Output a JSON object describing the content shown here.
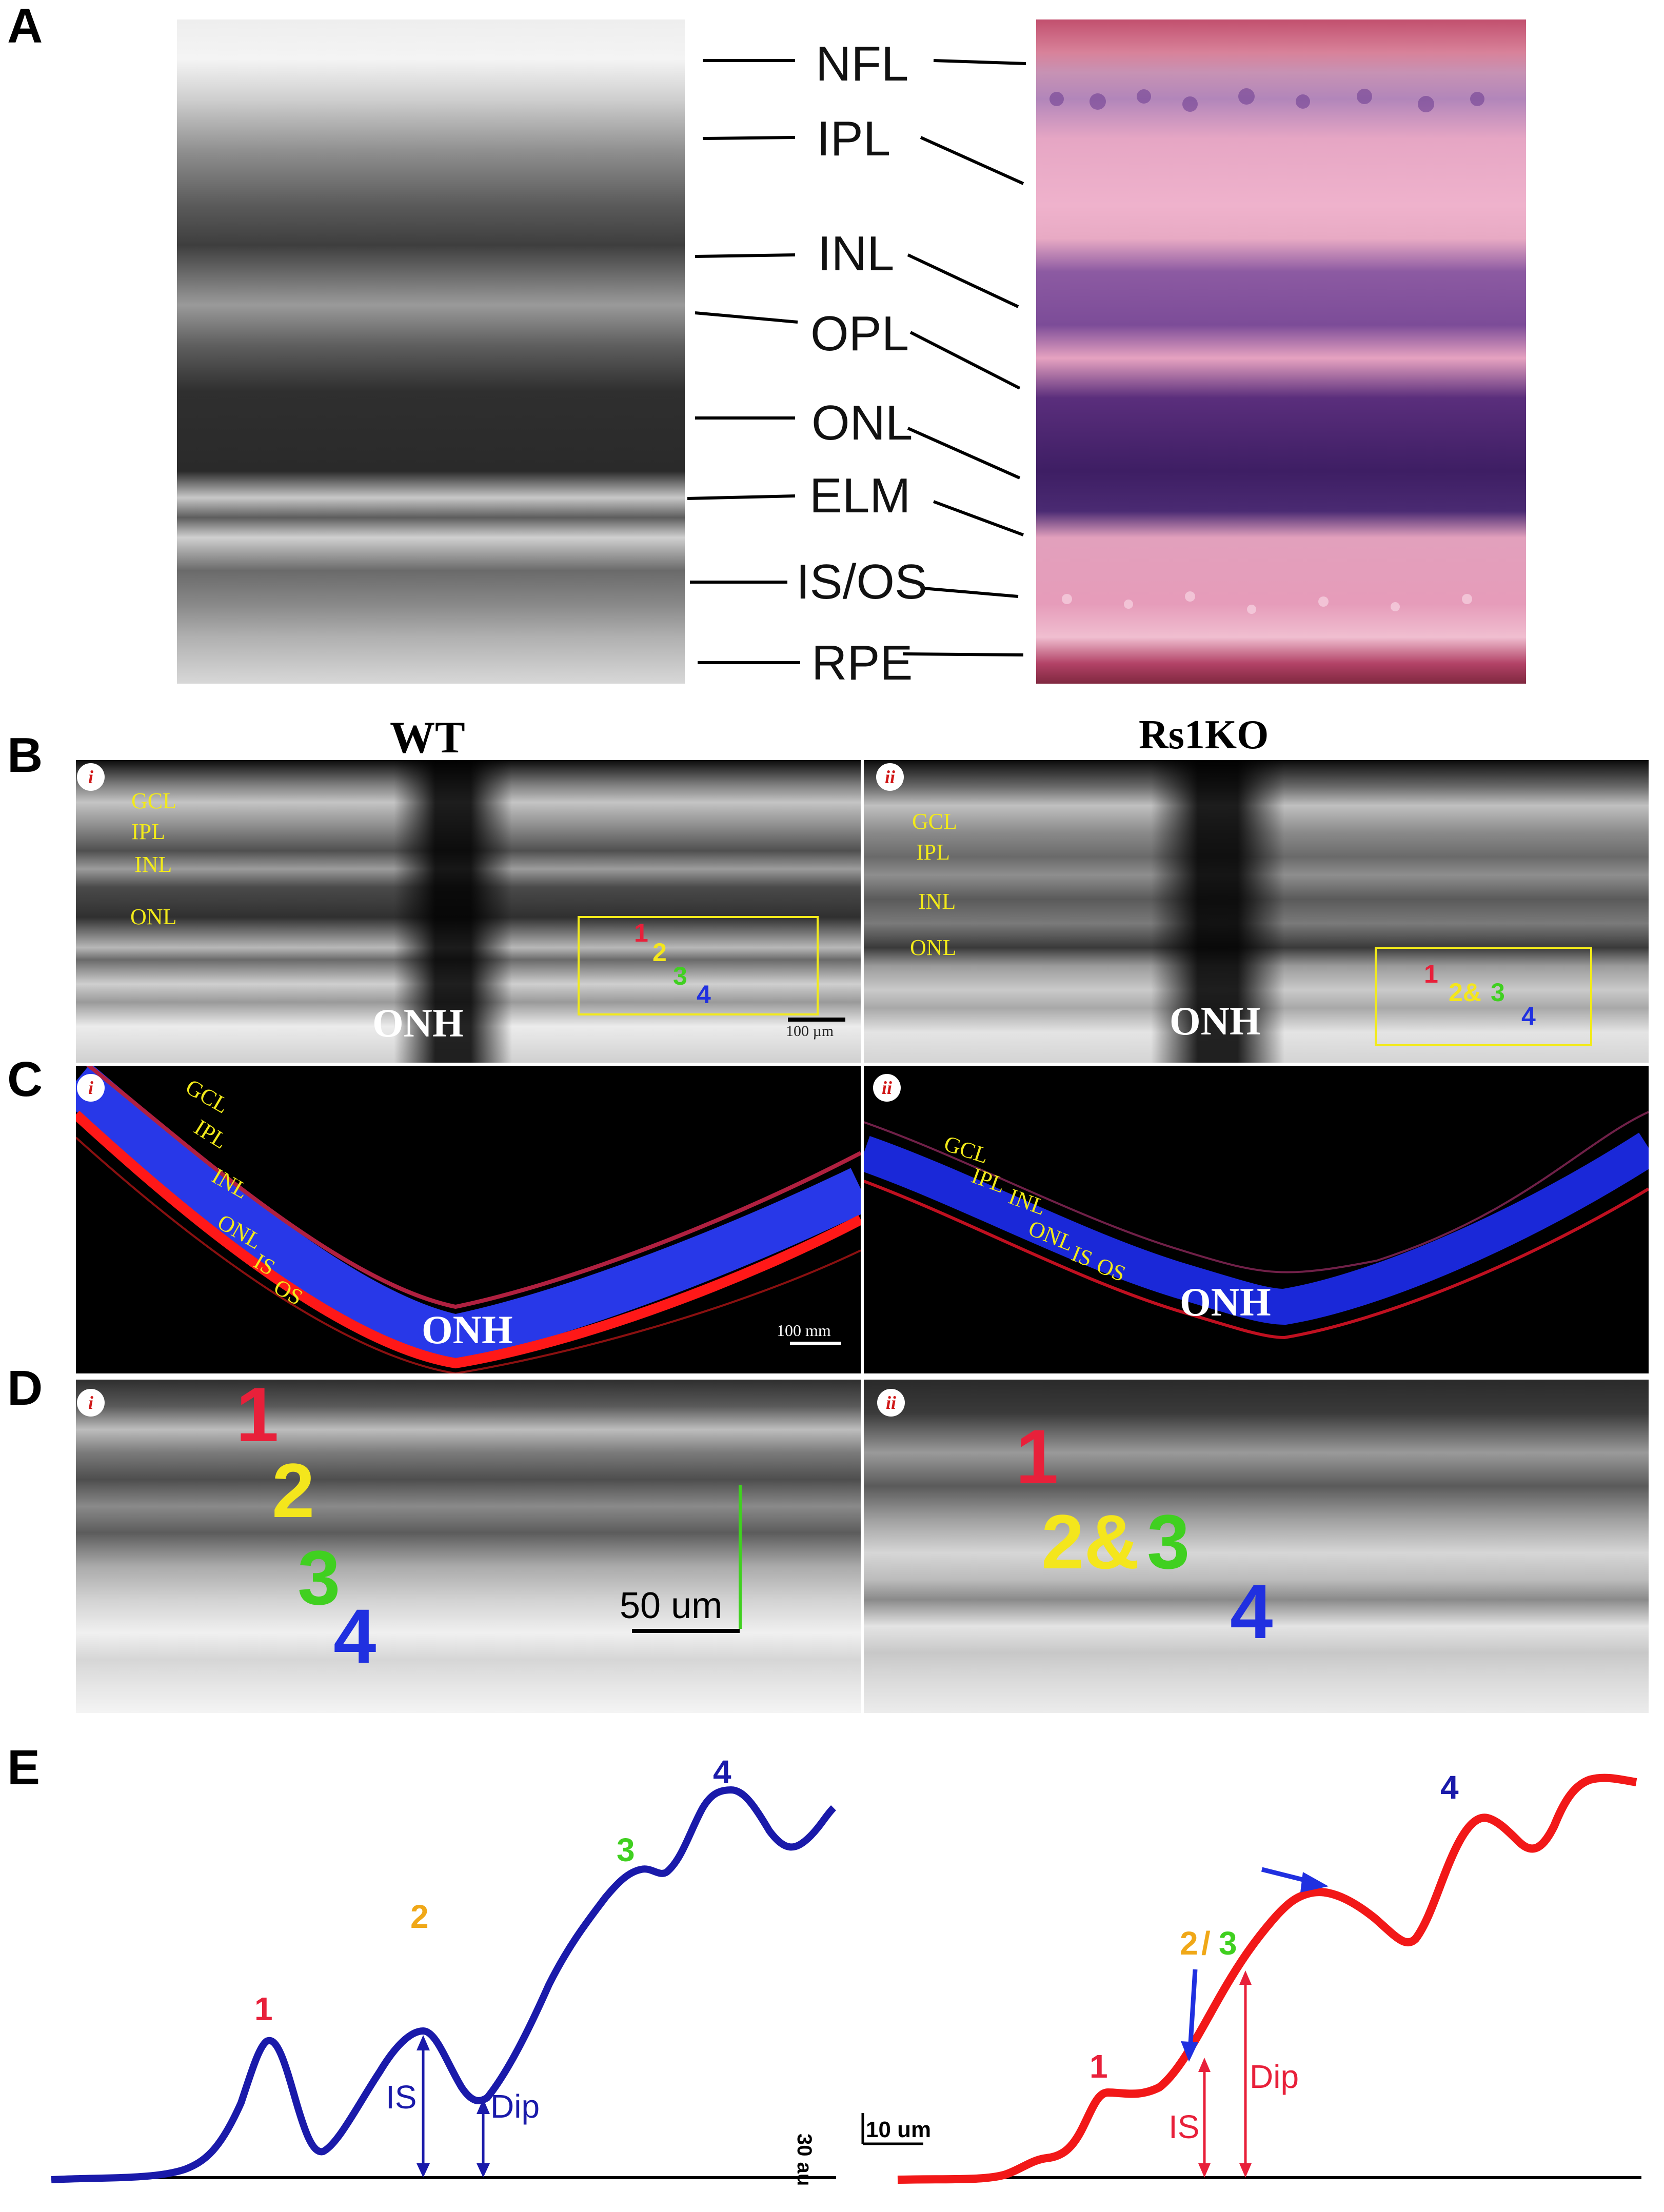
{
  "panel_letters": {
    "A": "A",
    "B": "B",
    "C": "C",
    "D": "D",
    "E": "E"
  },
  "panelA": {
    "layers": [
      "NFL",
      "IPL",
      "INL",
      "OPL",
      "ONL",
      "ELM",
      "IS/OS",
      "RPE"
    ]
  },
  "panelB": {
    "title_wt": "WT",
    "title_ko": "Rs1KO",
    "badge_i": "i",
    "badge_ii": "ii",
    "wt_layers": [
      "GCL",
      "IPL",
      "INL",
      "ONL"
    ],
    "ko_layers": [
      "GCL",
      "IPL",
      "INL",
      "ONL"
    ],
    "onh": "ONH",
    "wt_marks": [
      "1",
      "2",
      "3",
      "4"
    ],
    "ko_marks": {
      "m1": "1",
      "m23_a": "2&",
      "m23_b": "3",
      "m4": "4"
    },
    "scale": "100 µm"
  },
  "panelC": {
    "badge_i": "i",
    "badge_ii": "ii",
    "wt_layers": [
      "GCL",
      "IPL",
      "INL",
      "ONL",
      "IS",
      "OS"
    ],
    "ko_layers": [
      "GCL",
      "IPL",
      "INL",
      "ONL",
      "IS",
      "OS"
    ],
    "onh": "ONH",
    "scale": "100 mm"
  },
  "panelD": {
    "badge_i": "i",
    "badge_ii": "ii",
    "wt_marks": [
      "1",
      "2",
      "3",
      "4"
    ],
    "ko_marks": {
      "m1": "1",
      "m23_a": "2&",
      "m23_b": "3",
      "m4": "4"
    },
    "scale": "50 um"
  },
  "panelE": {
    "wt_peaks": [
      "1",
      "2",
      "3",
      "4"
    ],
    "wt_is": "IS",
    "wt_dip": "Dip",
    "ko_peaks": {
      "p1": "1",
      "p23_a": "2",
      "p23_sep": "/",
      "p23_b": "3",
      "p4": "4"
    },
    "ko_is": "IS",
    "ko_dip": "Dip",
    "scale_v": "30 au",
    "scale_h": "10 um"
  },
  "colors": {
    "red": "#e8203a",
    "yellow": "#f4e61c",
    "green": "#40d020",
    "blue": "#2030e0",
    "curve_blue": "#1a1aaa",
    "curve_red": "#f21818",
    "label_yellow": "#f2ea1a",
    "orange": "#f0a818"
  }
}
